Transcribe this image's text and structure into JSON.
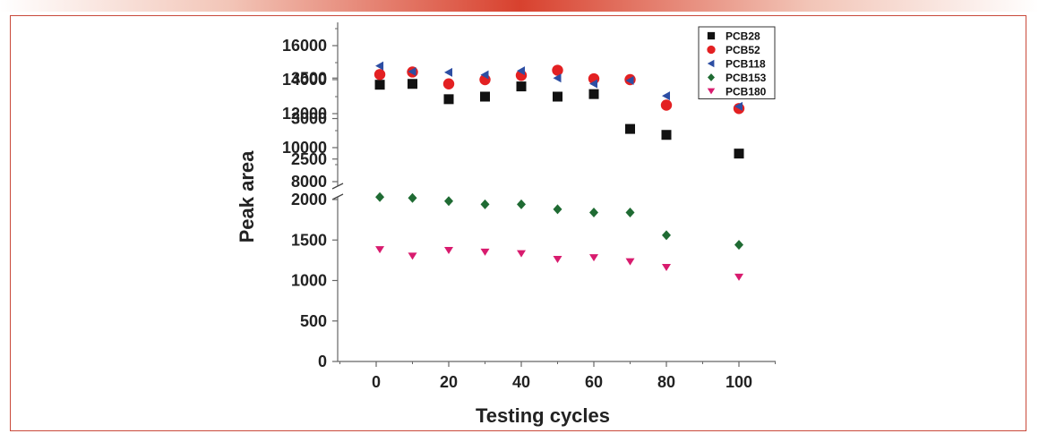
{
  "chart_data": {
    "type": "scatter",
    "title": "",
    "xlabel": "Testing cycles",
    "ylabel": "Peak area",
    "x_ticks": [
      0,
      20,
      40,
      60,
      80,
      100
    ],
    "xlim": [
      -10,
      110
    ],
    "upper_segment": {
      "ylim": [
        7000,
        17000
      ],
      "y_ticks": [
        "8000",
        "10000",
        "12000",
        "14000",
        "16000"
      ]
    },
    "lower_segment": {
      "ylim": [
        0,
        4000
      ],
      "y_ticks": [
        "0",
        "500",
        "1000",
        "1500",
        "2000",
        "2500",
        "3000",
        "3500"
      ]
    },
    "axis_break": "between 8000 and 3500",
    "legend_position": "top-right",
    "x": [
      1,
      10,
      20,
      30,
      40,
      50,
      60,
      70,
      80,
      100
    ],
    "series": [
      {
        "name": "PCB28",
        "marker": "square",
        "color": "#111111",
        "values": [
          13700,
          13750,
          12850,
          13000,
          13600,
          13000,
          13150,
          11100,
          10750,
          9650
        ]
      },
      {
        "name": "PCB52",
        "marker": "circle",
        "color": "#e32022",
        "values": [
          14300,
          14450,
          13750,
          14000,
          14250,
          14550,
          14050,
          14000,
          12500,
          12300
        ]
      },
      {
        "name": "PCB118",
        "marker": "triangle-left",
        "color": "#2d4ea3",
        "values": [
          3650,
          3580,
          3570,
          3540,
          3590,
          3500,
          3430,
          3470,
          3280,
          3150
        ]
      },
      {
        "name": "PCB153",
        "marker": "diamond",
        "color": "#1f6b33",
        "values": [
          2030,
          2020,
          1980,
          1940,
          1940,
          1880,
          1840,
          1840,
          1560,
          1440
        ]
      },
      {
        "name": "PCB180",
        "marker": "triangle-down",
        "color": "#d81b6e",
        "values": [
          1380,
          1300,
          1370,
          1350,
          1330,
          1260,
          1280,
          1230,
          1160,
          1040
        ]
      }
    ]
  }
}
